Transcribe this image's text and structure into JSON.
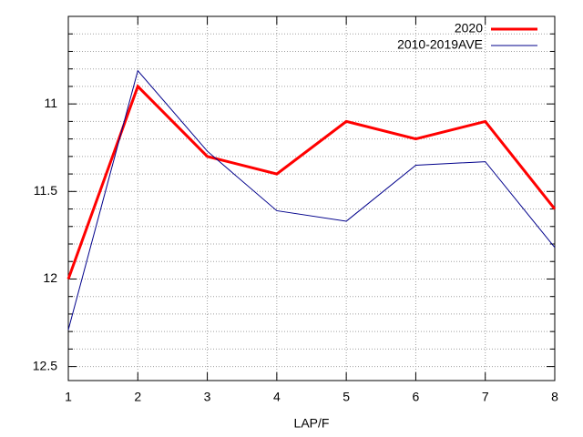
{
  "chart_data": {
    "type": "line",
    "x_label": "LAP/F",
    "x": [
      1,
      2,
      3,
      4,
      5,
      6,
      7,
      8
    ],
    "xlim": [
      1,
      8
    ],
    "xticks": [
      1,
      2,
      3,
      4,
      5,
      6,
      7,
      8
    ],
    "ylim": [
      10.5,
      12.58
    ],
    "y_reversed": true,
    "yticks": [
      11,
      11.5,
      12,
      12.5
    ],
    "yminorticks": [
      10.6,
      10.7,
      10.8,
      10.9,
      11.1,
      11.2,
      11.3,
      11.4,
      11.6,
      11.7,
      11.8,
      11.9,
      12.1,
      12.2,
      12.3,
      12.4
    ],
    "grid": true,
    "legend": "top-right",
    "series": [
      {
        "name": "2020",
        "color": "#ff0000",
        "line_width": 3,
        "values": [
          12.0,
          10.9,
          11.3,
          11.4,
          11.1,
          11.2,
          11.1,
          11.6
        ]
      },
      {
        "name": "2010-2019AVE",
        "color": "#00008b",
        "line_width": 1,
        "values": [
          12.29,
          10.81,
          11.27,
          11.61,
          11.67,
          11.35,
          11.33,
          11.82
        ]
      }
    ]
  }
}
